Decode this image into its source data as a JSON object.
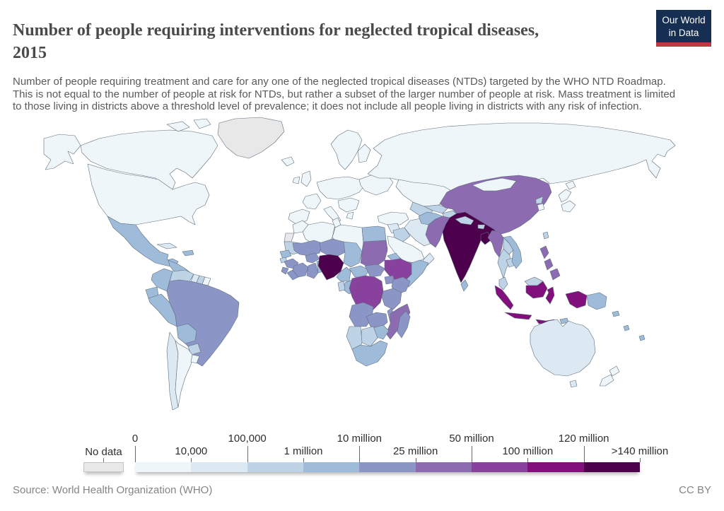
{
  "header": {
    "title_line1": "Number of people requiring interventions for neglected tropical diseases,",
    "title_line2": "2015",
    "logo": {
      "line1": "Our World",
      "line2": "in Data",
      "bg_color": "#152e52",
      "accent_color": "#c0383f"
    }
  },
  "subtitle": "Number of people requiring treatment and care for any one of the neglected tropical diseases (NTDs) targeted by the WHO NTD Roadmap. This is not equal to the number of people at risk for NTDs, but rather a subset of the larger number of people at risk. Mass treatment is limited to those living in districts above a threshold level of prevalence; it does not include all people living in districts with any risk of infection.",
  "legend": {
    "no_data_label": "No data",
    "no_data_color": "#e8e8e8",
    "bucket_colors": [
      "#eff6f9",
      "#dce9f2",
      "#bfd3e6",
      "#9ebcda",
      "#8c96c6",
      "#8c6bb1",
      "#88419d",
      "#810f7c",
      "#4d004b"
    ],
    "boundaries": [
      {
        "label": "0",
        "row": "top"
      },
      {
        "label": "10,000",
        "row": "bottom"
      },
      {
        "label": "100,000",
        "row": "top"
      },
      {
        "label": "1 million",
        "row": "bottom"
      },
      {
        "label": "10 million",
        "row": "top"
      },
      {
        "label": "25 million",
        "row": "bottom"
      },
      {
        "label": "50 million",
        "row": "top"
      },
      {
        "label": "100 million",
        "row": "bottom"
      },
      {
        "label": "120 million",
        "row": "top"
      },
      {
        "label": ">140 million",
        "row": "bottom"
      }
    ]
  },
  "map": {
    "border_color": "#5f6e7e",
    "ocean_color": "#ffffff",
    "palette": {
      "no-data": "#e8e8e8",
      "b0": "#eff6f9",
      "b10k": "#dce9f2",
      "b100k": "#bfd3e6",
      "b1m": "#9ebcda",
      "b10m": "#8c96c6",
      "b25m": "#8c6bb1",
      "b50m": "#88419d",
      "b100m": "#810f7c",
      "b120m": "#4d004b"
    },
    "countries": {
      "greenland": "no-data",
      "western-sahara": "no-data",
      "usa": "b0",
      "canada": "b0",
      "iceland": "b0",
      "french-guiana": "b0",
      "argentina": "b0",
      "uruguay": "b0",
      "uk": "b0",
      "ireland": "b0",
      "scandinavia": "b0",
      "finland": "b0",
      "france": "b0",
      "iberia": "b0",
      "central-europe": "b0",
      "italy": "b0",
      "balkans": "b0",
      "east-europe": "b0",
      "greece": "b0",
      "russia": "b0",
      "kazakhstan": "b0",
      "mongolia": "b0",
      "turkey": "b0",
      "saudi-arabia": "b0",
      "japan": "b0",
      "south-korea": "b0",
      "new-zealand": "b0",
      "morocco": "b0",
      "algeria": "b0",
      "tunisia": "b0",
      "libya": "b0",
      "cuba": "b10k",
      "guyana": "b10k",
      "chile": "b10k",
      "syria": "b10k",
      "iran": "b10k",
      "oman": "b10k",
      "australia": "b10k",
      "venezuela": "b100k",
      "suriname": "b100k",
      "paraguay": "b100k",
      "iraq": "b100k",
      "turkmenistan": "b100k",
      "uzbekistan": "b100k",
      "kyrgyzstan": "b100k",
      "nepal": "b100k",
      "bhutan": "b100k",
      "north-korea": "b100k",
      "taiwan": "b100k",
      "thailand": "b100k",
      "laos": "b100k",
      "cambodia": "b100k",
      "malaysia": "b100k",
      "mauritania": "b100k",
      "guinea-bissau": "b100k",
      "gabon": "b100k",
      "botswana": "b100k",
      "namibia": "b100k",
      "mexico": "b1m",
      "central-america": "b1m",
      "hispaniola": "b1m",
      "colombia": "b1m",
      "ecuador": "b1m",
      "peru": "b1m",
      "bolivia": "b1m",
      "egypt": "b1m",
      "senegal": "b1m",
      "togo-benin": "b1m",
      "chad": "b1m",
      "central-african-republic": "b1m",
      "eritrea": "b1m",
      "somalia": "b1m",
      "congo": "b1m",
      "cameroon": "b1m",
      "zimbabwe": "b1m",
      "south-africa": "b1m",
      "yemen": "b1m",
      "afghanistan": "b1m",
      "vietnam": "b1m",
      "sri-lanka": "b1m",
      "papua-new-guinea": "b1m",
      "fiji": "b1m",
      "solomon-islands": "b1m",
      "vanuatu": "b1m",
      "timor-leste": "b1m",
      "brazil": "b10m",
      "mali": "b10m",
      "niger": "b10m",
      "burkina-faso": "b10m",
      "ghana": "b10m",
      "cote-divoire": "b10m",
      "guinea": "b10m",
      "sierra-leone": "b10m",
      "liberia": "b10m",
      "uganda": "b10m",
      "kenya": "b10m",
      "tanzania": "b10m",
      "angola": "b10m",
      "zambia": "b10m",
      "malawi": "b10m",
      "madagascar": "b10m",
      "south-sudan": "b10m",
      "china": "b25m",
      "pakistan": "b25m",
      "myanmar": "b25m",
      "sudan": "b25m",
      "mozambique": "b25m",
      "philippines": "b25m",
      "dr-congo": "b50m",
      "ethiopia": "b50m",
      "indonesia": "b100m",
      "india": "b120m",
      "bangladesh": "b120m",
      "nigeria": "b120m"
    }
  },
  "footer": {
    "source": "Source: World Health Organization (WHO)",
    "license": "CC BY"
  },
  "chart_data": {
    "type": "heatmap",
    "subtype": "choropleth_world_map",
    "title": "Number of people requiring interventions for neglected tropical diseases, 2015",
    "unit": "people",
    "legend_position": "bottom",
    "legend_thresholds": [
      "0",
      "10,000",
      "100,000",
      "1 million",
      "10 million",
      "25 million",
      "50 million",
      "100 million",
      "120 million",
      ">140 million"
    ],
    "bucket_ranges": {
      "b0": "0 – 10,000",
      "b10k": "10,000 – 100,000",
      "b100k": "100,000 – 1 million",
      "b1m": "1 million – 10 million",
      "b10m": "10 million – 25 million",
      "b25m": "25 million – 50 million",
      "b50m": "50 million – 100 million",
      "b100m": "100 million – 120 million",
      "b120m": "120 million – >140 million"
    },
    "notable_values": {
      "India": ">140 million",
      "Nigeria": "120 million – >140 million",
      "Bangladesh": "120 million – >140 million",
      "Indonesia": "100 million – 120 million",
      "Democratic Republic of Congo": "50 million – 100 million",
      "Ethiopia": "50 million – 100 million",
      "China": "25 million – 50 million",
      "Pakistan": "25 million – 50 million",
      "Philippines": "25 million – 50 million",
      "Myanmar": "25 million – 50 million",
      "Sudan": "25 million – 50 million",
      "Mozambique": "25 million – 50 million",
      "Brazil": "10 million – 25 million",
      "Tanzania": "10 million – 25 million",
      "Madagascar": "10 million – 25 million",
      "Mexico": "1 million – 10 million",
      "Egypt": "1 million – 10 million",
      "South Africa": "1 million – 10 million",
      "Australia": "10,000 – 100,000",
      "United States": "0 – 10,000",
      "Canada": "0 – 10,000",
      "Europe": "0 – 10,000",
      "Russia": "0 – 10,000",
      "Greenland": "No data"
    }
  }
}
